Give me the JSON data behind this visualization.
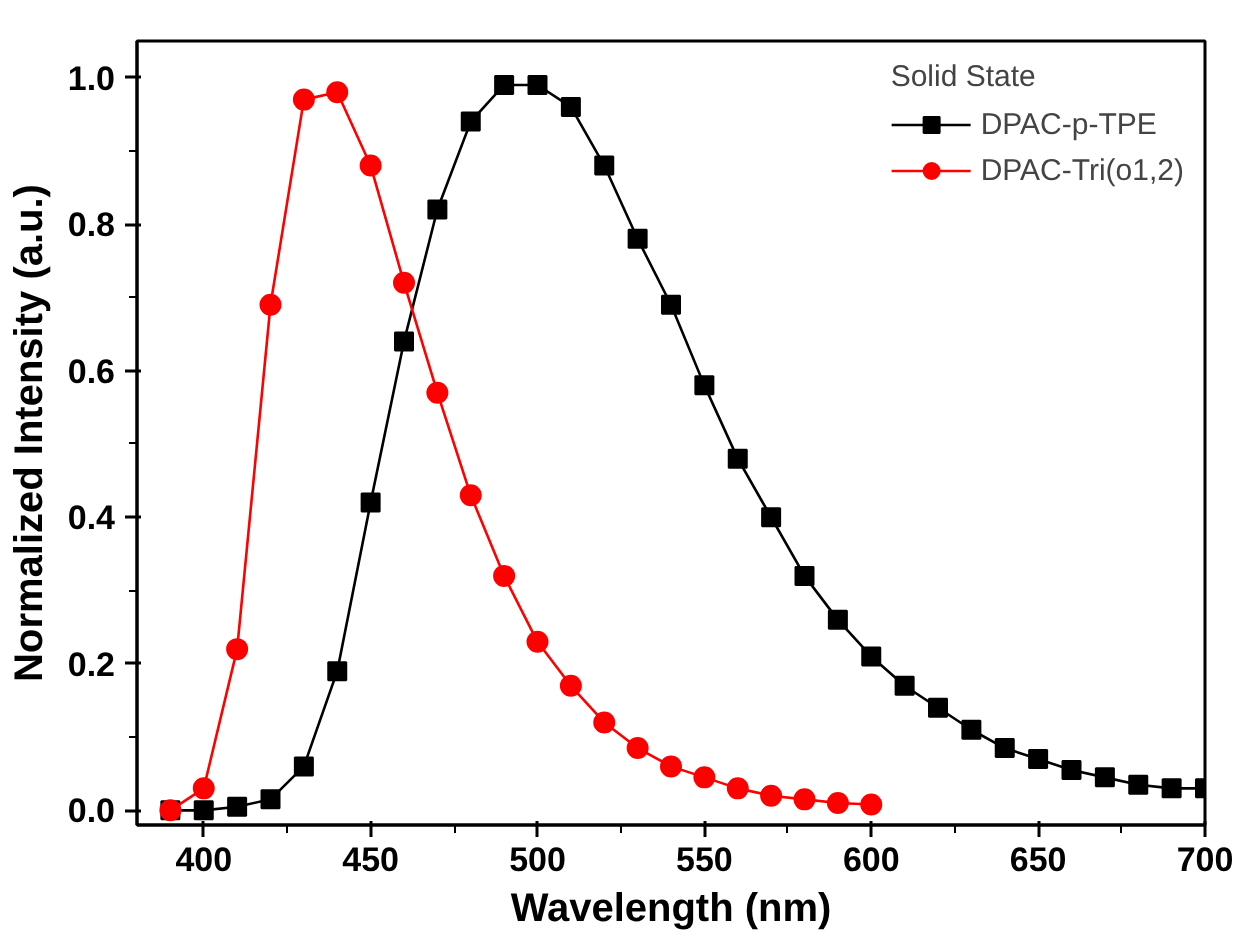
{
  "chart_data": {
    "type": "line",
    "xlabel": "Wavelength (nm)",
    "ylabel": "Normalized Intensity (a.u.)",
    "legend_title": "Solid State",
    "xlim": [
      380,
      700
    ],
    "xticks": [
      400,
      450,
      500,
      550,
      600,
      650,
      700
    ],
    "ylim": [
      -0.02,
      1.05
    ],
    "yticks": [
      {
        "value": 0,
        "label": "0.0"
      },
      {
        "value": 0.2,
        "label": "0.2"
      },
      {
        "value": 0.4,
        "label": "0.4"
      },
      {
        "value": 0.6,
        "label": "0.6"
      },
      {
        "value": 0.8,
        "label": "0.8"
      },
      {
        "value": 1.0,
        "label": "1.0"
      }
    ],
    "grid": false,
    "legend": "top right",
    "series": [
      {
        "name": "DPAC-p-TPE",
        "color": "#000000",
        "marker": "square",
        "x": [
          390,
          400,
          410,
          420,
          430,
          440,
          450,
          460,
          470,
          480,
          490,
          500,
          510,
          520,
          530,
          540,
          550,
          560,
          570,
          580,
          590,
          600,
          610,
          620,
          630,
          640,
          650,
          660,
          670,
          680,
          690,
          700
        ],
        "values": [
          0.0,
          0.0,
          0.005,
          0.015,
          0.06,
          0.19,
          0.42,
          0.64,
          0.82,
          0.94,
          0.99,
          0.99,
          0.96,
          0.88,
          0.78,
          0.69,
          0.58,
          0.48,
          0.4,
          0.32,
          0.26,
          0.21,
          0.17,
          0.14,
          0.11,
          0.085,
          0.07,
          0.055,
          0.045,
          0.035,
          0.03,
          0.03
        ]
      },
      {
        "name": "DPAC-Tri(o1,2)",
        "color": "#ff0000",
        "marker": "circle",
        "x": [
          390,
          400,
          410,
          420,
          430,
          440,
          450,
          460,
          470,
          480,
          490,
          500,
          510,
          520,
          530,
          540,
          550,
          560,
          570,
          580,
          590,
          600
        ],
        "values": [
          0.0,
          0.03,
          0.22,
          0.69,
          0.97,
          0.98,
          0.88,
          0.72,
          0.57,
          0.43,
          0.32,
          0.23,
          0.17,
          0.12,
          0.085,
          0.06,
          0.045,
          0.03,
          0.02,
          0.015,
          0.01,
          0.008
        ]
      }
    ]
  }
}
